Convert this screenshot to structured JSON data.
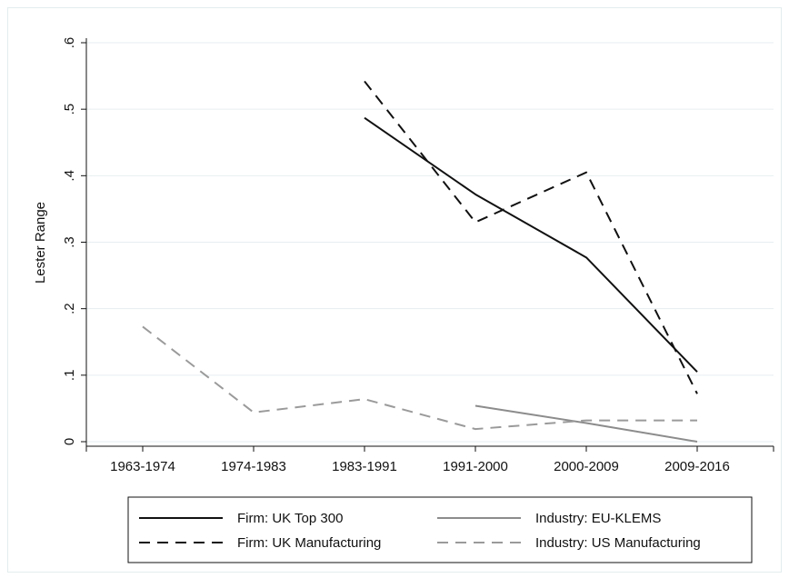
{
  "chart_data": {
    "type": "line",
    "title": "",
    "xlabel": "",
    "ylabel": "Lester Range",
    "categories": [
      "1963-1974",
      "1974-1983",
      "1983-1991",
      "1991-2000",
      "2000-2009",
      "2009-2016"
    ],
    "ylim": [
      0,
      0.6
    ],
    "yticks": [
      0,
      0.1,
      0.2,
      0.3,
      0.4,
      0.5,
      0.6
    ],
    "ytick_labels": [
      "0",
      ".1",
      ".2",
      ".3",
      ".4",
      ".5",
      ".6"
    ],
    "grid": "horizontal",
    "legend_position": "bottom",
    "series": [
      {
        "name": "Firm: UK Top 300",
        "values": [
          null,
          null,
          0.487,
          0.372,
          0.277,
          0.105
        ],
        "color": "#111111",
        "dash": "solid"
      },
      {
        "name": "Firm: UK Manufacturing",
        "values": [
          null,
          null,
          0.542,
          0.33,
          0.405,
          0.072
        ],
        "color": "#111111",
        "dash": "dashed"
      },
      {
        "name": "Industry: EU-KLEMS",
        "values": [
          null,
          null,
          null,
          0.054,
          0.028,
          0.0
        ],
        "color": "#8c8c8c",
        "dash": "solid"
      },
      {
        "name": "Industry: US Manufacturing",
        "values": [
          0.173,
          0.044,
          0.064,
          0.019,
          0.032,
          0.032
        ],
        "color": "#9a9a9a",
        "dash": "dashed"
      }
    ]
  }
}
